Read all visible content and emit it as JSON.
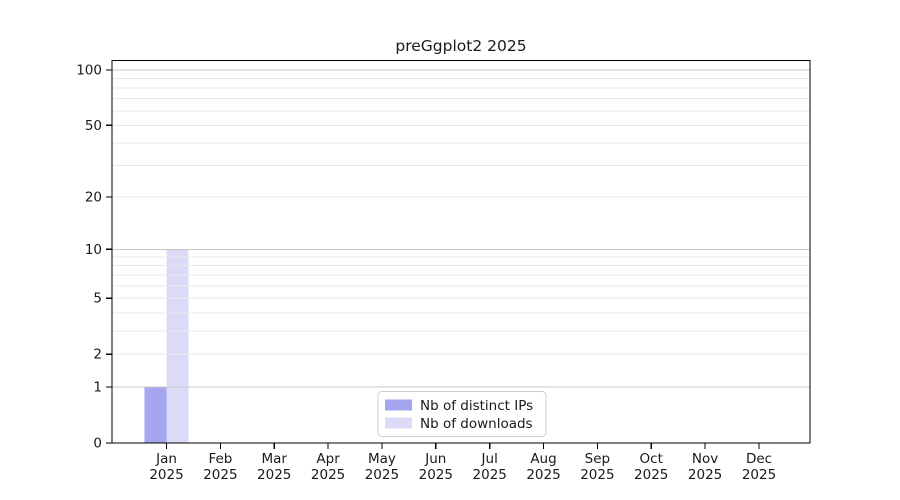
{
  "figure": {
    "background": "#ffffff",
    "axis_color": "#000000",
    "text_color": "#1a1a1a"
  },
  "chart_data": {
    "type": "bar",
    "title": "preGgplot2 2025",
    "xlabel": "",
    "ylabel": "",
    "yscale": "log1p",
    "yticks": [
      0,
      1,
      2,
      5,
      10,
      20,
      50,
      100
    ],
    "ylim": [
      0,
      113
    ],
    "categories": [
      {
        "month": "Jan",
        "year": "2025"
      },
      {
        "month": "Feb",
        "year": "2025"
      },
      {
        "month": "Mar",
        "year": "2025"
      },
      {
        "month": "Apr",
        "year": "2025"
      },
      {
        "month": "May",
        "year": "2025"
      },
      {
        "month": "Jun",
        "year": "2025"
      },
      {
        "month": "Jul",
        "year": "2025"
      },
      {
        "month": "Aug",
        "year": "2025"
      },
      {
        "month": "Sep",
        "year": "2025"
      },
      {
        "month": "Oct",
        "year": "2025"
      },
      {
        "month": "Nov",
        "year": "2025"
      },
      {
        "month": "Dec",
        "year": "2025"
      }
    ],
    "series": [
      {
        "name": "Nb of distinct IPs",
        "color": "#a5a5f0",
        "values": [
          1,
          0,
          0,
          0,
          0,
          0,
          0,
          0,
          0,
          0,
          0,
          0
        ]
      },
      {
        "name": "Nb of downloads",
        "color": "#dbdbf8",
        "values": [
          10,
          0,
          0,
          0,
          0,
          0,
          0,
          0,
          0,
          0,
          0,
          0
        ]
      }
    ],
    "grid": {
      "minor_values": [
        2,
        3,
        4,
        5,
        6,
        7,
        8,
        9,
        20,
        30,
        40,
        50,
        60,
        70,
        80,
        90
      ],
      "major_values": [
        1,
        10,
        100
      ],
      "minor_color": "#e8e8e8",
      "major_color": "#c8c8c8"
    },
    "legend": {
      "position": "bottom-center"
    }
  }
}
